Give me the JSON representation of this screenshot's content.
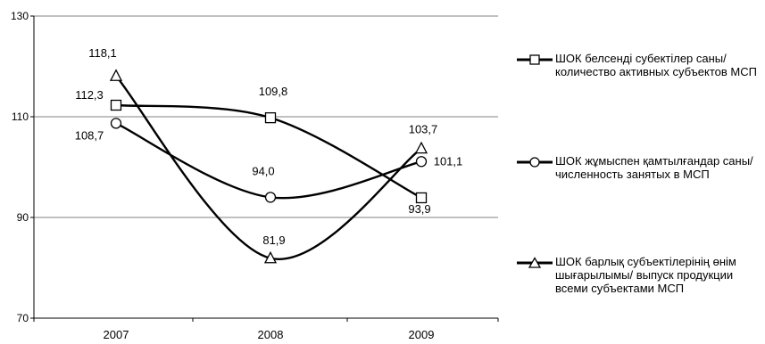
{
  "chart_data": {
    "type": "line",
    "categories": [
      "2007",
      "2008",
      "2009"
    ],
    "ylim": [
      70,
      130
    ],
    "yticks": [
      70,
      90,
      110,
      130
    ],
    "grid": true,
    "legend_position": "right",
    "series": [
      {
        "name": "ШОК белсенді субектілер саны/ количество активных субъектов МСП",
        "marker": "square",
        "values": [
          112.3,
          109.8,
          93.9
        ],
        "labels": [
          "112,3",
          "109,8",
          "93,9"
        ]
      },
      {
        "name": "ШОК жұмыспен қамтылғандар саны/ численность занятых в МСП",
        "marker": "circle",
        "values": [
          108.7,
          94.0,
          101.1
        ],
        "labels": [
          "108,7",
          "94,0",
          "101,1"
        ]
      },
      {
        "name": "ШОК барлық субъектілерінің өнім шығарылымы/ выпуск продукции всеми субъектами МСП",
        "marker": "triangle",
        "values": [
          118.1,
          81.9,
          103.7
        ],
        "labels": [
          "118,1",
          "81,9",
          "103,7"
        ]
      }
    ]
  }
}
